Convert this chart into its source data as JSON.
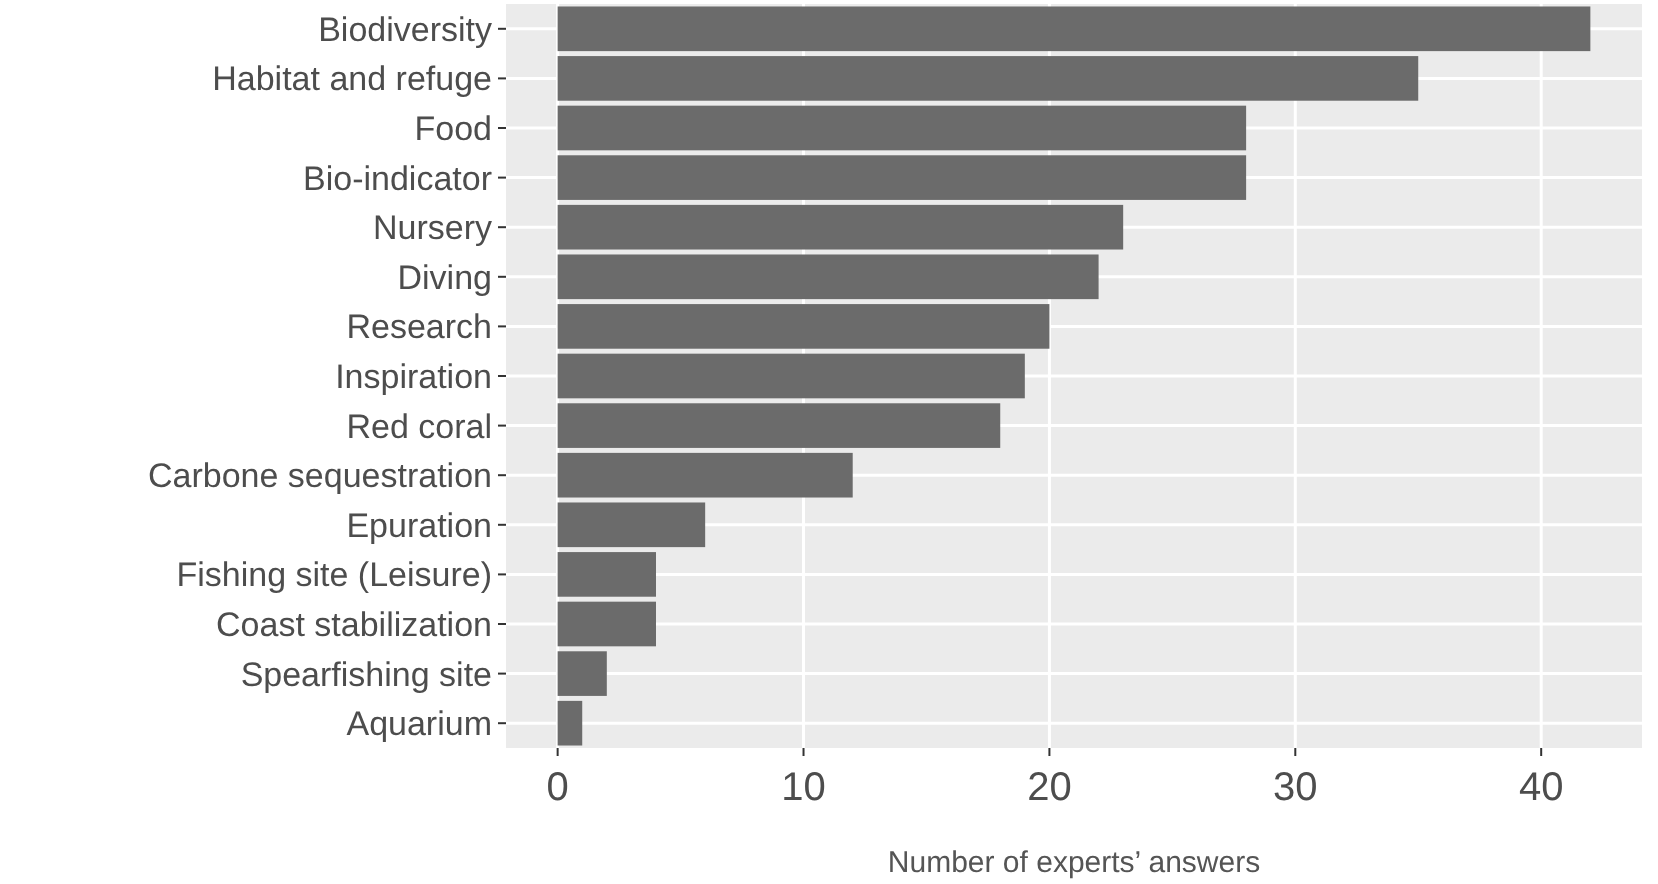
{
  "chart_data": {
    "type": "bar",
    "orientation": "horizontal",
    "xlabel": "Number of experts’ answers",
    "categories": [
      "Biodiversity",
      "Habitat and refuge",
      "Food",
      "Bio-indicator",
      "Nursery",
      "Diving",
      "Research",
      "Inspiration",
      "Red coral",
      "Carbone sequestration",
      "Epuration",
      "Fishing site (Leisure)",
      "Coast stabilization",
      "Spearfishing site",
      "Aquarium"
    ],
    "values": [
      42,
      35,
      28,
      28,
      23,
      22,
      20,
      19,
      18,
      12,
      6,
      4,
      4,
      2,
      1
    ],
    "color": "#6b6b6b",
    "xlim": [
      -2.1,
      44.1
    ],
    "xticks": [
      0,
      10,
      20,
      30,
      40
    ],
    "grid": true
  }
}
